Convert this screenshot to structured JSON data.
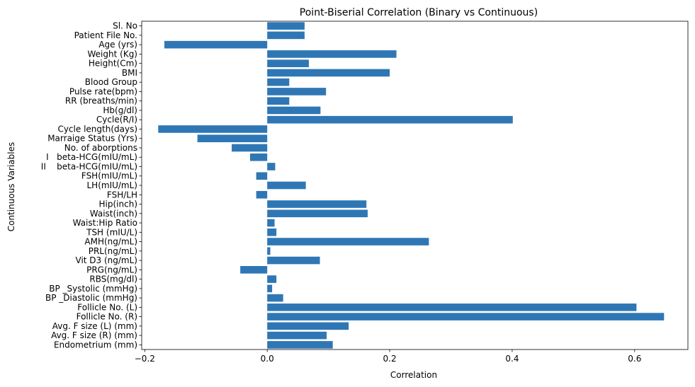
{
  "chart_data": {
    "type": "bar",
    "orientation": "horizontal",
    "title": "Point-Biserial Correlation (Binary vs Continuous)",
    "xlabel": "Correlation",
    "ylabel": "Continuous Variables",
    "xlim": [
      -0.205,
      0.687
    ],
    "xticks": [
      -0.2,
      0.0,
      0.2,
      0.4,
      0.6
    ],
    "xtick_labels": [
      "−0.2",
      "0.0",
      "0.2",
      "0.4",
      "0.6"
    ],
    "grid": false,
    "legend": "none",
    "bar_color": "#2f77b4",
    "categories": [
      "Sl. No",
      "Patient File No.",
      "Age (yrs)",
      "Weight (Kg)",
      "Height(Cm)",
      "BMI",
      "Blood Group",
      "Pulse rate(bpm)",
      "RR (breaths/min)",
      "Hb(g/dl)",
      "Cycle(R/I)",
      "Cycle length(days)",
      "Marraige Status (Yrs)",
      "No. of aborptions",
      "I   beta-HCG(mIU/mL)",
      "II    beta-HCG(mIU/mL)",
      "FSH(mIU/mL)",
      "LH(mIU/mL)",
      "FSH/LH",
      "Hip(inch)",
      "Waist(inch)",
      "Waist:Hip Ratio",
      "TSH (mIU/L)",
      "AMH(ng/mL)",
      "PRL(ng/mL)",
      "Vit D3 (ng/mL)",
      "PRG(ng/mL)",
      "RBS(mg/dl)",
      "BP _Systolic (mmHg)",
      "BP _Diastolic (mmHg)",
      "Follicle No. (L)",
      "Follicle No. (R)",
      "Avg. F size (L) (mm)",
      "Avg. F size (R) (mm)",
      "Endometrium (mm)"
    ],
    "values": [
      0.061,
      0.061,
      -0.168,
      0.211,
      0.068,
      0.2,
      0.036,
      0.096,
      0.036,
      0.087,
      0.401,
      -0.178,
      -0.114,
      -0.058,
      -0.028,
      0.013,
      -0.018,
      0.063,
      -0.018,
      0.162,
      0.164,
      0.012,
      0.015,
      0.264,
      0.005,
      0.086,
      -0.044,
      0.015,
      0.008,
      0.026,
      0.603,
      0.648,
      0.133,
      0.097,
      0.107
    ]
  }
}
